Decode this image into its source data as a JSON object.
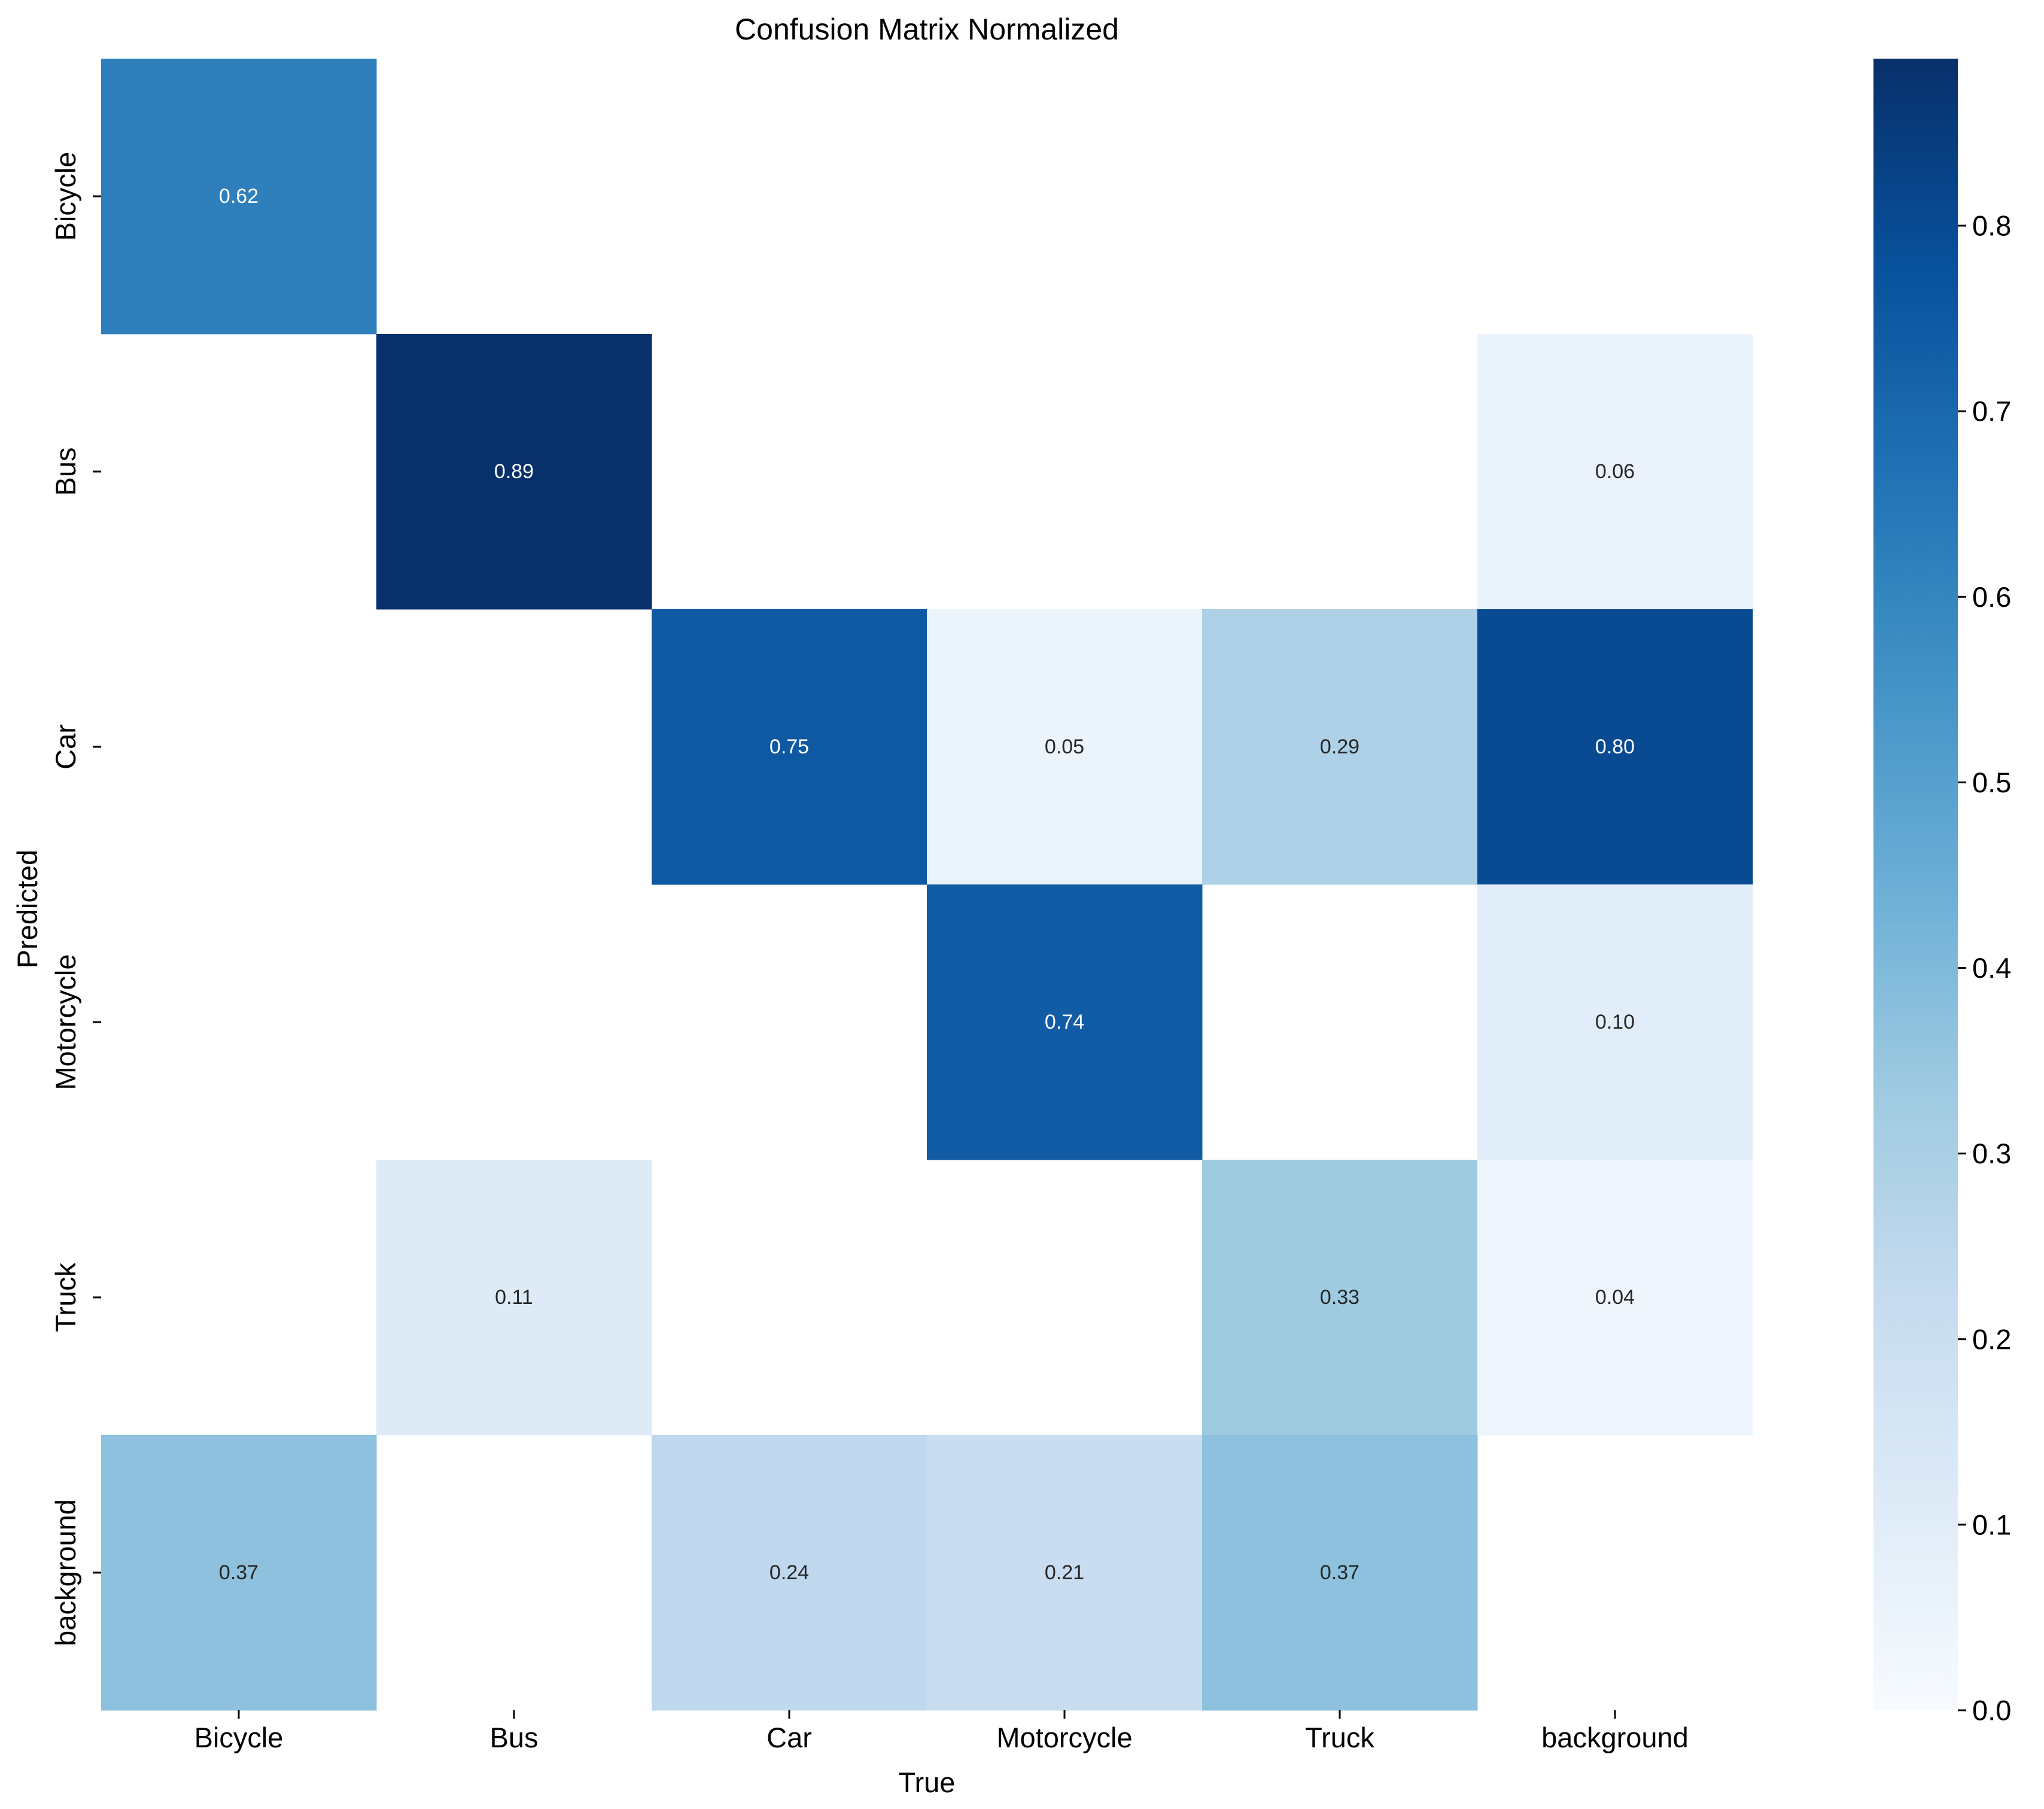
{
  "chart_data": {
    "type": "heatmap",
    "title": "Confusion Matrix Normalized",
    "xlabel": "True",
    "ylabel": "Predicted",
    "x_categories": [
      "Bicycle",
      "Bus",
      "Car",
      "Motorcycle",
      "Truck",
      "background"
    ],
    "y_categories": [
      "Bicycle",
      "Bus",
      "Car",
      "Motorcycle",
      "Truck",
      "background"
    ],
    "values": [
      [
        0.62,
        null,
        null,
        null,
        null,
        null
      ],
      [
        null,
        0.89,
        null,
        null,
        null,
        0.06
      ],
      [
        null,
        null,
        0.75,
        0.05,
        0.29,
        0.8
      ],
      [
        null,
        null,
        null,
        0.74,
        null,
        0.1
      ],
      [
        null,
        0.11,
        null,
        null,
        0.33,
        0.04
      ],
      [
        0.37,
        null,
        0.24,
        0.21,
        0.37,
        null
      ]
    ],
    "value_format": "0.00",
    "colormap": "Blues",
    "vmin": 0.0,
    "vmax": 0.89,
    "colorbar_ticks": [
      "0.0",
      "0.1",
      "0.2",
      "0.3",
      "0.4",
      "0.5",
      "0.6",
      "0.7",
      "0.8"
    ],
    "colorbar_tick_values": [
      0.0,
      0.1,
      0.2,
      0.3,
      0.4,
      0.5,
      0.6,
      0.7,
      0.8
    ],
    "empty_cells_blank": true
  }
}
